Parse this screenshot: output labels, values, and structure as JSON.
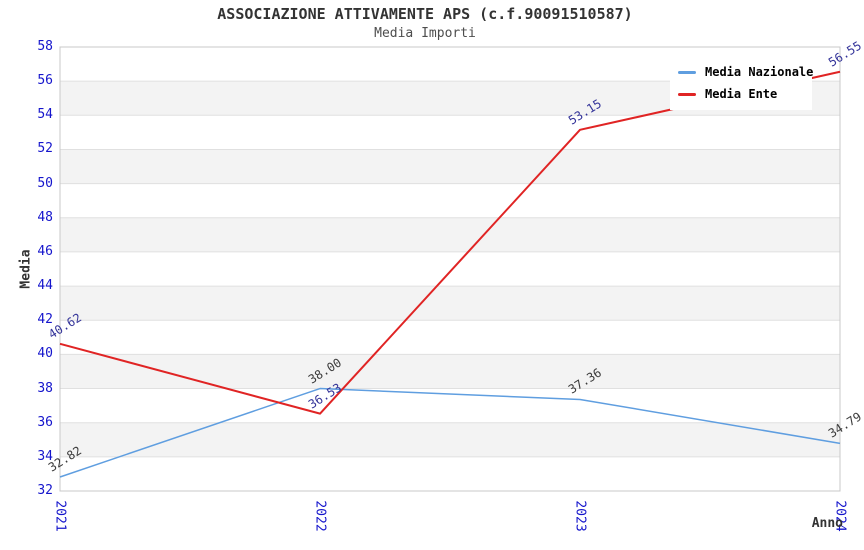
{
  "chart_data": {
    "type": "line",
    "title": "ASSOCIAZIONE ATTIVAMENTE APS (c.f.90091510587)",
    "subtitle": "Media Importi",
    "xlabel": "Anno",
    "ylabel": "Media",
    "categories": [
      "2021",
      "2022",
      "2023",
      "2024"
    ],
    "series": [
      {
        "name": "Media Nazionale",
        "color": "#5f9ee0",
        "label_color": "#3a3a3a",
        "values": [
          32.82,
          38.0,
          37.36,
          34.79
        ]
      },
      {
        "name": "Media Ente",
        "color": "#e02424",
        "label_color": "#333399",
        "values": [
          40.62,
          36.53,
          53.15,
          56.55
        ]
      }
    ],
    "ylim": [
      32,
      58
    ],
    "ytick_step": 2,
    "value_decimals": 2,
    "grid": true,
    "legend_position": "top-right",
    "colors": {
      "title": "#333333",
      "subtitle": "#4d4d4d",
      "axis_tick_label": "#1515cc",
      "axis_title": "#333333",
      "band_alt": "#f3f3f3",
      "band_base": "#ffffff",
      "gridline": "#e0e0e0",
      "plot_border": "#c8c8c8",
      "legend_background": "#ffffff"
    }
  }
}
